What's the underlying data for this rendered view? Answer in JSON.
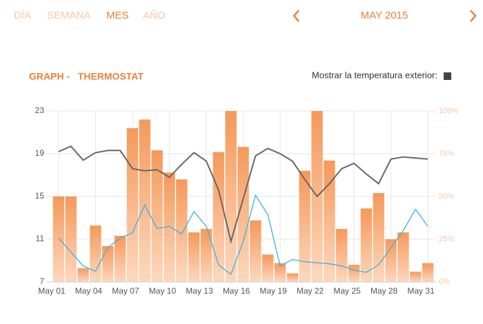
{
  "tabs": [
    "DÍA",
    "SEMANA",
    "MES",
    "AÑO"
  ],
  "active_tab": 2,
  "period": "MAY 2015",
  "toggle_label": "Mostrar la temperatura exterior:",
  "chart_data": {
    "type": "bar",
    "title": "GRAPH -   THERMOSTAT",
    "categories": [
      "May 01",
      null,
      null,
      "May 04",
      null,
      null,
      "May 07",
      null,
      null,
      "May 10",
      null,
      null,
      "May 13",
      null,
      null,
      "May 16",
      null,
      null,
      "May 19",
      null,
      null,
      "May 22",
      null,
      null,
      "May 25",
      null,
      null,
      "May 28",
      null,
      null,
      "May 31"
    ],
    "series": [
      {
        "type": "bar",
        "axis": "y2",
        "color": "#f5995a",
        "values": [
          50,
          50,
          8,
          33,
          21,
          27,
          90,
          95,
          77,
          64,
          60,
          29,
          31,
          76,
          100,
          79,
          36,
          16,
          11,
          5,
          65,
          100,
          71,
          31,
          10,
          43,
          52,
          25,
          29,
          6,
          11
        ]
      },
      {
        "type": "line",
        "color": "#666666",
        "values": [
          19.2,
          19.7,
          18.4,
          19.1,
          19.3,
          19.3,
          17.6,
          17.4,
          17.5,
          16.8,
          18.0,
          19.1,
          18.3,
          15.6,
          10.8,
          14.8,
          18.8,
          19.5,
          19.0,
          18.3,
          16.6,
          15.0,
          16.2,
          17.6,
          18.1,
          17.1,
          16.2,
          18.5,
          18.7,
          18.6,
          18.5
        ]
      },
      {
        "type": "line",
        "color": "#3ab0e0",
        "values": [
          11.1,
          9.8,
          8.5,
          8.0,
          10.2,
          11.1,
          11.6,
          14.2,
          12.0,
          12.2,
          11.5,
          13.6,
          12.2,
          8.6,
          7.7,
          10.8,
          15.1,
          13.3,
          8.5,
          9.1,
          8.9,
          8.8,
          8.7,
          8.5,
          8.1,
          7.9,
          8.6,
          10.2,
          11.8,
          13.8,
          12.2
        ]
      }
    ],
    "ylim": [
      7,
      23
    ],
    "yticks": [
      7,
      11,
      15,
      19,
      23
    ],
    "y2lim": [
      0,
      100
    ],
    "y2ticks": [
      {
        "value": 0,
        "label": "0%"
      },
      {
        "value": 25,
        "label": "25%"
      },
      {
        "value": 50,
        "label": "50%"
      },
      {
        "value": 75,
        "label": "75%"
      },
      {
        "value": 100,
        "label": "100%"
      }
    ],
    "grid": true
  }
}
